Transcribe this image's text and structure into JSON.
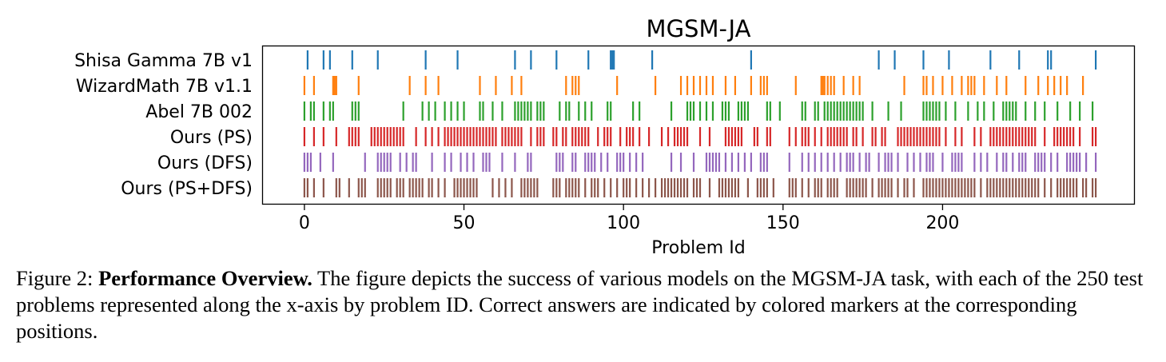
{
  "chart_data": {
    "type": "event-raster",
    "title": "MGSM-JA",
    "xlabel": "Problem Id",
    "ylabel": "",
    "xlim": [
      -13,
      260
    ],
    "xticks": [
      0,
      50,
      100,
      150,
      200
    ],
    "grid": false,
    "legend": "none",
    "series": [
      {
        "name": "Shisa Gamma 7B v1",
        "color": "#1f77b4",
        "x": [
          1,
          6,
          8,
          15,
          23,
          38,
          48,
          66,
          71,
          79,
          89,
          96,
          96.5,
          97,
          109,
          140,
          180,
          185,
          194,
          202,
          215,
          224,
          233,
          234,
          248
        ]
      },
      {
        "name": "WizardMath 7B v1.1",
        "color": "#ff7f0e",
        "x": [
          0,
          3,
          9,
          9.5,
          10,
          17,
          33,
          38,
          42,
          55,
          60,
          65,
          68,
          82,
          84,
          85,
          86,
          98,
          110,
          118,
          120,
          122,
          124,
          126,
          128,
          132,
          135,
          140,
          143,
          144,
          145,
          154,
          162,
          162.5,
          163,
          164,
          165,
          166,
          169,
          172,
          174,
          188,
          194,
          195,
          197,
          200,
          203,
          206,
          208,
          209,
          210,
          213,
          217,
          220,
          226,
          230,
          233,
          235,
          237,
          239,
          244
        ]
      },
      {
        "name": "Abel 7B 002",
        "color": "#2ca02c",
        "x": [
          0,
          2,
          3,
          6,
          8,
          9,
          15,
          16,
          17,
          31,
          37,
          39,
          41,
          44,
          46,
          48,
          50,
          55,
          56,
          59,
          62,
          66,
          67,
          68,
          69,
          70,
          71,
          73,
          74,
          75,
          80,
          82,
          83,
          86,
          88,
          90,
          95,
          96,
          103,
          105,
          115,
          120,
          121,
          122,
          124,
          126,
          128,
          131,
          132,
          133,
          136,
          137,
          138,
          139,
          145,
          146,
          149,
          156,
          157,
          160,
          161,
          163,
          164,
          165,
          166,
          167,
          168,
          169,
          170,
          171,
          172,
          173,
          174,
          175,
          178,
          183,
          187,
          194,
          195,
          196,
          197,
          198,
          199,
          201,
          204,
          208,
          211,
          213,
          216,
          219,
          220,
          221,
          222,
          223,
          226,
          229,
          232,
          236,
          240,
          243,
          247
        ]
      },
      {
        "name": "Ours (PS)",
        "color": "#d62728",
        "x": [
          0,
          3,
          6,
          10,
          14,
          15,
          16,
          17,
          21,
          22,
          23,
          24,
          25,
          26,
          27,
          28,
          29,
          30,
          31,
          35,
          38,
          40,
          42,
          44,
          45,
          46,
          47,
          48,
          49,
          50,
          51,
          52,
          53,
          54,
          55,
          56,
          57,
          58,
          59,
          60,
          62,
          63,
          64,
          65,
          66,
          67,
          68,
          71,
          73,
          74,
          75,
          78,
          79,
          81,
          82,
          84,
          85,
          86,
          87,
          88,
          89,
          92,
          94,
          95,
          96,
          99,
          101,
          102,
          103,
          105,
          108,
          112,
          114,
          116,
          117,
          118,
          119,
          120,
          124,
          127,
          132,
          133,
          134,
          135,
          136,
          137,
          141,
          142,
          145,
          146,
          152,
          154,
          156,
          157,
          158,
          160,
          162,
          164,
          165,
          166,
          167,
          168,
          169,
          170,
          172,
          173,
          175,
          178,
          179,
          181,
          182,
          186,
          187,
          188,
          189,
          190,
          191,
          192,
          193,
          194,
          195,
          196,
          197,
          198,
          199,
          201,
          204,
          206,
          210,
          212,
          215,
          216,
          217,
          218,
          219,
          220,
          221,
          222,
          223,
          224,
          225,
          226,
          227,
          228,
          229,
          232,
          235,
          236,
          237,
          238,
          239,
          240,
          241,
          243,
          247,
          248
        ]
      },
      {
        "name": "Ours (DFS)",
        "color": "#9467bd",
        "x": [
          0,
          1,
          2,
          5,
          9,
          19,
          23,
          24,
          25,
          26,
          27,
          30,
          32,
          34,
          35,
          40,
          44,
          46,
          49,
          51,
          53,
          56,
          57,
          58,
          62,
          66,
          70,
          71,
          79,
          80,
          81,
          84,
          85,
          88,
          89,
          90,
          91,
          93,
          95,
          98,
          99,
          100,
          102,
          104,
          106,
          115,
          118,
          122,
          126,
          127,
          128,
          129,
          130,
          132,
          134,
          136,
          138,
          140,
          143,
          144,
          145,
          152,
          156,
          158,
          160,
          162,
          164,
          166,
          168,
          170,
          171,
          172,
          174,
          176,
          177,
          180,
          182,
          183,
          184,
          186,
          189,
          191,
          193,
          195,
          196,
          197,
          200,
          203,
          204,
          205,
          206,
          210,
          212,
          214,
          217,
          219,
          220,
          222,
          224,
          225,
          226,
          229,
          230,
          231,
          232,
          234,
          236,
          239,
          240,
          241,
          242,
          243,
          245,
          248
        ]
      },
      {
        "name": "Ours (PS+DFS)",
        "color": "#8c564b",
        "x": [
          0,
          1,
          3,
          6,
          10,
          11,
          14,
          17,
          18,
          19,
          23,
          24,
          25,
          26,
          27,
          29,
          30,
          31,
          33,
          34,
          35,
          36,
          37,
          39,
          40,
          42,
          44,
          47,
          48,
          49,
          50,
          51,
          52,
          53,
          54,
          59,
          61,
          63,
          65,
          68,
          69,
          70,
          71,
          72,
          73,
          78,
          79,
          80,
          82,
          83,
          84,
          85,
          86,
          88,
          90,
          91,
          92,
          94,
          96,
          98,
          100,
          101,
          102,
          104,
          106,
          108,
          110,
          112,
          113,
          114,
          115,
          116,
          117,
          118,
          119,
          120,
          122,
          123,
          124,
          127,
          130,
          131,
          132,
          133,
          134,
          135,
          136,
          139,
          142,
          143,
          144,
          145,
          147,
          152,
          153,
          154,
          156,
          158,
          160,
          161,
          162,
          164,
          165,
          166,
          167,
          170,
          171,
          172,
          173,
          174,
          175,
          176,
          178,
          180,
          181,
          182,
          183,
          184,
          186,
          188,
          189,
          191,
          194,
          195,
          196,
          197,
          198,
          199,
          200,
          201,
          202,
          203,
          204,
          205,
          206,
          207,
          208,
          209,
          210,
          212,
          214,
          215,
          216,
          217,
          218,
          219,
          220,
          221,
          222,
          223,
          224,
          225,
          226,
          227,
          228,
          229,
          230,
          232,
          234,
          236,
          237,
          238,
          239,
          240,
          241,
          242,
          244,
          245,
          247,
          248
        ]
      }
    ]
  },
  "caption": {
    "label": "Figure 2:",
    "bold": "Performance Overview.",
    "text": "The figure depicts the success of various models on the MGSM-JA task, with each of the 250 test problems represented along the x-axis by problem ID. Correct answers are indicated by colored markers at the corresponding positions."
  }
}
